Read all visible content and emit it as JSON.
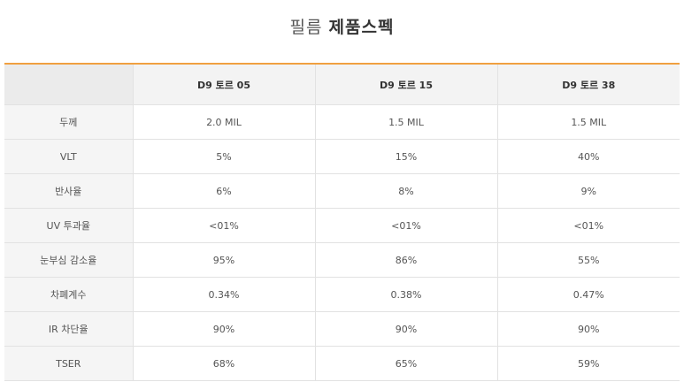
{
  "title": {
    "light": "필름",
    "bold": "제품스펙"
  },
  "table": {
    "headers": [
      "",
      "D9 토르 05",
      "D9 토르 15",
      "D9 토르 38"
    ],
    "rows": [
      {
        "label": "두께",
        "values": [
          "2.0 MIL",
          "1.5 MIL",
          "1.5 MIL"
        ]
      },
      {
        "label": "VLT",
        "values": [
          "5%",
          "15%",
          "40%"
        ]
      },
      {
        "label": "반사율",
        "values": [
          "6%",
          "8%",
          "9%"
        ]
      },
      {
        "label": "UV 투과율",
        "values": [
          "<01%",
          "<01%",
          "<01%"
        ]
      },
      {
        "label": "눈부심 감소율",
        "values": [
          "95%",
          "86%",
          "55%"
        ]
      },
      {
        "label": "차폐계수",
        "values": [
          "0.34%",
          "0.38%",
          "0.47%"
        ]
      },
      {
        "label": "IR 차단율",
        "values": [
          "90%",
          "90%",
          "90%"
        ]
      },
      {
        "label": "TSER",
        "values": [
          "68%",
          "65%",
          "59%"
        ]
      }
    ]
  },
  "colors": {
    "accent": "#f0a040",
    "header_bg": "#f3f3f3",
    "border": "#e2e2e2"
  }
}
